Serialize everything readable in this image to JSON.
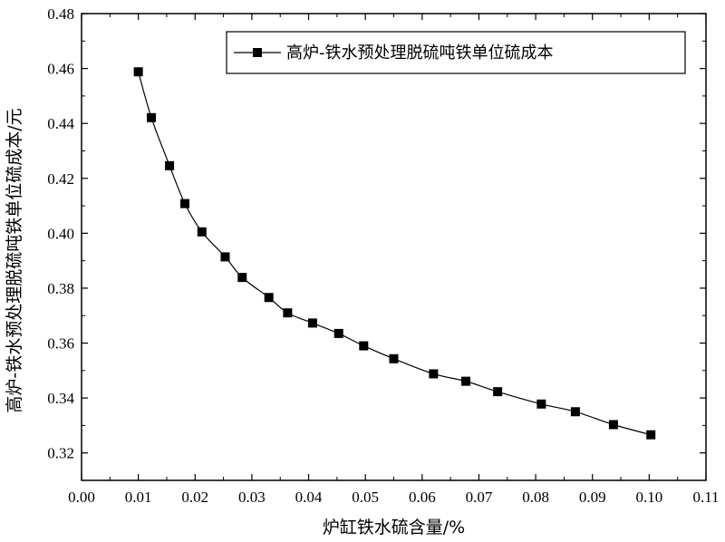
{
  "chart_data": {
    "type": "line",
    "xlabel": "炉缸铁水硫含量/%",
    "ylabel": "高炉-铁水预处理脱硫吨铁单位硫成本/元",
    "xlim": [
      0.0,
      0.11
    ],
    "ylim": [
      0.31,
      0.48
    ],
    "x_ticks": [
      "0.00",
      "0.01",
      "0.02",
      "0.03",
      "0.04",
      "0.05",
      "0.06",
      "0.07",
      "0.08",
      "0.09",
      "0.10",
      "0.11"
    ],
    "y_ticks": [
      "0.32",
      "0.34",
      "0.36",
      "0.38",
      "0.40",
      "0.42",
      "0.44",
      "0.46",
      "0.48"
    ],
    "legend_position": "top-right",
    "grid": false,
    "series": [
      {
        "name": "高炉-铁水预处理脱硫吨铁单位硫成本",
        "color": "#000000",
        "marker": "square",
        "x": [
          0.01,
          0.0123,
          0.0155,
          0.0182,
          0.0212,
          0.0253,
          0.0283,
          0.033,
          0.0363,
          0.0407,
          0.0453,
          0.0497,
          0.055,
          0.062,
          0.0677,
          0.0733,
          0.081,
          0.087,
          0.0937,
          0.1003
        ],
        "y": [
          0.4588,
          0.4421,
          0.4246,
          0.4108,
          0.4005,
          0.3914,
          0.3839,
          0.3766,
          0.371,
          0.3673,
          0.3635,
          0.359,
          0.3543,
          0.3488,
          0.3461,
          0.3423,
          0.3378,
          0.335,
          0.3303,
          0.3266
        ]
      }
    ]
  }
}
